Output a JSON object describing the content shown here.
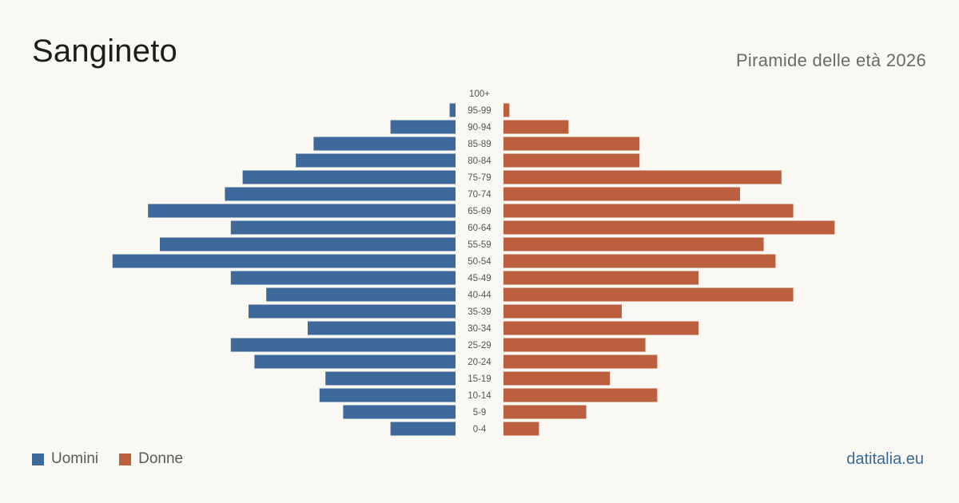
{
  "title": "Sangineto",
  "subtitle": "Piramide delle età 2026",
  "brand": "datitalia.eu",
  "colors": {
    "men": "#3d6a9a",
    "women": "#bc5f3e",
    "age_label": "#555555"
  },
  "legend": [
    {
      "label": "Uomini",
      "color": "#3d6a9a"
    },
    {
      "label": "Donne",
      "color": "#bc5f3e"
    }
  ],
  "chart_data": {
    "type": "bar",
    "orientation": "horizontal-pyramid",
    "categories": [
      "100+",
      "95-99",
      "90-94",
      "85-89",
      "80-84",
      "75-79",
      "70-74",
      "65-69",
      "60-64",
      "55-59",
      "50-54",
      "45-49",
      "40-44",
      "35-39",
      "30-34",
      "25-29",
      "20-24",
      "15-19",
      "10-14",
      "5-9",
      "0-4"
    ],
    "series": [
      {
        "name": "Uomini",
        "values": [
          0,
          1,
          11,
          24,
          27,
          36,
          39,
          52,
          38,
          50,
          58,
          38,
          32,
          35,
          25,
          38,
          34,
          22,
          23,
          19,
          11
        ]
      },
      {
        "name": "Donne",
        "values": [
          0,
          1,
          11,
          23,
          23,
          47,
          40,
          49,
          56,
          44,
          46,
          33,
          49,
          20,
          33,
          24,
          26,
          18,
          26,
          14,
          6
        ]
      }
    ]
  }
}
